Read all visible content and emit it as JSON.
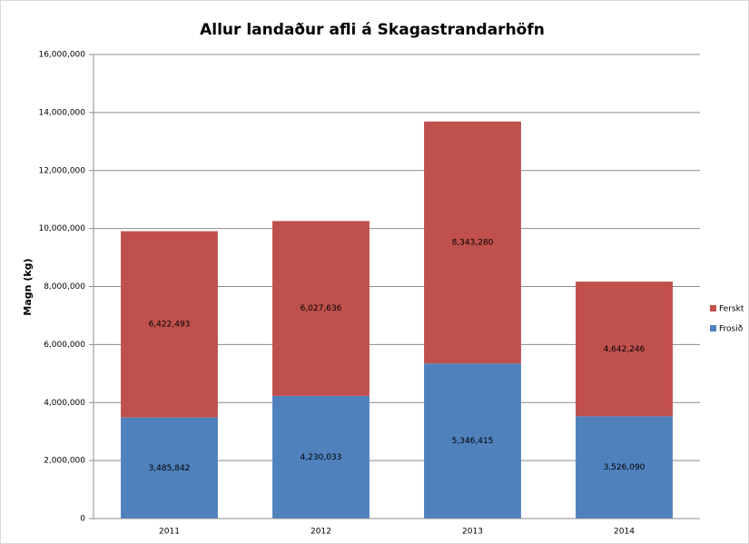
{
  "chart_data": {
    "type": "stacked_bar",
    "title": "Allur landaður afli á Skagastrandarhöfn",
    "y_label": "Magn (kg)",
    "categories": [
      "2011",
      "2012",
      "2013",
      "2014"
    ],
    "series": [
      {
        "name": "Frosið",
        "color": "#4f81bd",
        "values": [
          3485842,
          4230033,
          5346415,
          3526090
        ],
        "value_labels": [
          "3,485,842",
          "4,230,033",
          "5,346,415",
          "3,526,090"
        ]
      },
      {
        "name": "Ferskt",
        "color": "#c0504d",
        "values": [
          6422493,
          6027636,
          8343280,
          4642246
        ],
        "value_labels": [
          "6,422,493",
          "6,027,636",
          "8,343,280",
          "4,642,246"
        ]
      }
    ],
    "ylim": [
      0,
      16000000
    ],
    "yticks": [
      0,
      {
        "value": 2000000,
        "label": "2,000,000"
      },
      {
        "value": 4000000,
        "label": "4,000,000"
      },
      {
        "value": 6000000,
        "label": "6,000,000"
      },
      {
        "value": 8000000,
        "label": "8,000,000"
      },
      {
        "value": 10000000,
        "label": "10,000,000"
      },
      {
        "value": 12000000,
        "label": "12,000,000"
      },
      {
        "value": 14000000,
        "label": "14,000,000"
      },
      {
        "value": 16000000,
        "label": "16,000,000"
      }
    ],
    "grid": true,
    "legend": "right"
  }
}
